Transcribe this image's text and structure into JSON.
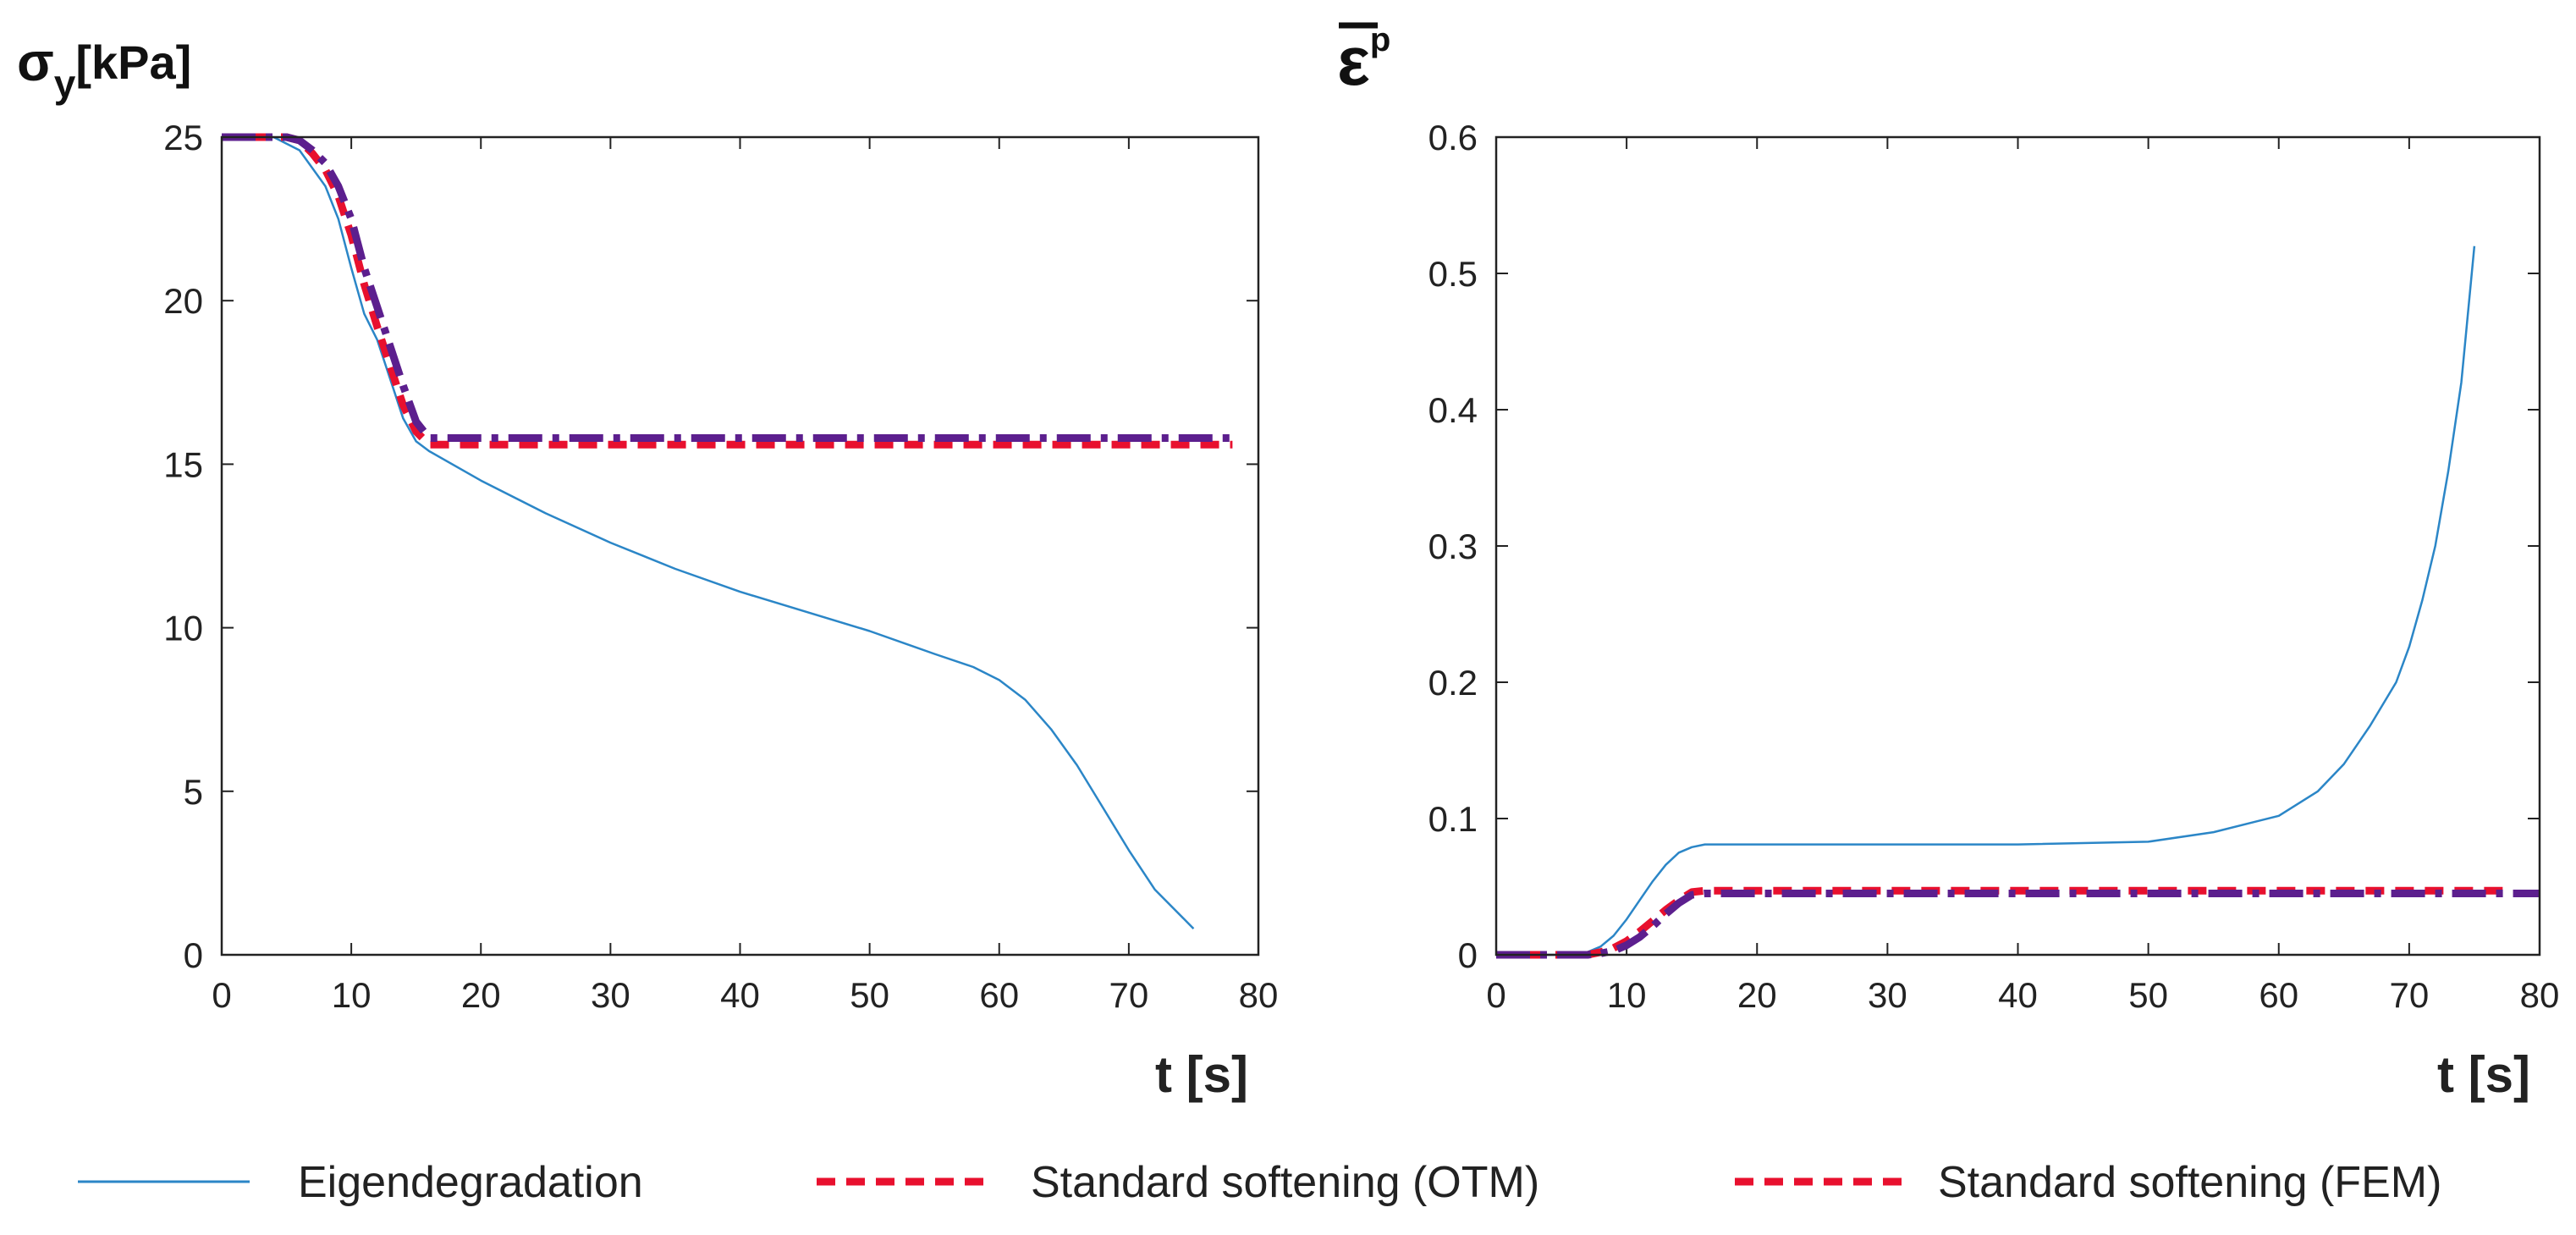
{
  "colors": {
    "eigen": "#2b86c7",
    "otm": "#e8102e",
    "fem": "#5c1f8e",
    "axis": "#222222"
  },
  "legend": {
    "items": [
      {
        "label": "Eigendegradation",
        "style": "solid",
        "color": "#2b86c7"
      },
      {
        "label": "Standard softening (OTM)",
        "style": "dashed",
        "color": "#e8102e"
      },
      {
        "label": "Standard softening (FEM)",
        "style": "dashed",
        "color": "#e8102e"
      }
    ]
  },
  "chart_data": [
    {
      "type": "line",
      "ylabel_main": "σ",
      "ylabel_sub": "y",
      "ylabel_unit": "[kPa]",
      "xlabel": "t [s]",
      "xlim": [
        0,
        80
      ],
      "ylim": [
        0,
        25
      ],
      "xticks": [
        "0",
        "10",
        "20",
        "30",
        "40",
        "50",
        "60",
        "70",
        "80"
      ],
      "yticks": [
        "0",
        "5",
        "10",
        "15",
        "20",
        "25"
      ],
      "series": [
        {
          "name": "Eigendegradation",
          "x": [
            0,
            4,
            6,
            8,
            9,
            10,
            11,
            12,
            13,
            14,
            15,
            16,
            20,
            25,
            30,
            35,
            40,
            45,
            50,
            55,
            58,
            60,
            62,
            64,
            66,
            68,
            70,
            72,
            74,
            75
          ],
          "y": [
            25,
            25,
            24.6,
            23.5,
            22.5,
            21,
            19.6,
            18.8,
            17.6,
            16.4,
            15.7,
            15.4,
            14.5,
            13.5,
            12.6,
            11.8,
            11.1,
            10.5,
            9.9,
            9.2,
            8.8,
            8.4,
            7.8,
            6.9,
            5.8,
            4.5,
            3.2,
            2.0,
            1.2,
            0.8
          ]
        },
        {
          "name": "Standard softening (OTM)",
          "x": [
            0,
            5,
            6,
            7,
            8,
            9,
            10,
            11,
            12,
            13,
            14,
            15,
            16,
            78
          ],
          "y": [
            25,
            25,
            24.9,
            24.5,
            24.0,
            23.2,
            22.0,
            20.5,
            19.2,
            18.0,
            16.8,
            16.0,
            15.6,
            15.6
          ]
        },
        {
          "name": "Standard softening (FEM)",
          "x": [
            0,
            5,
            6,
            7,
            8,
            9,
            10,
            11,
            12,
            13,
            14,
            15,
            16,
            78
          ],
          "y": [
            25,
            25,
            24.9,
            24.6,
            24.2,
            23.5,
            22.5,
            21.0,
            19.8,
            18.6,
            17.4,
            16.3,
            15.8,
            15.8
          ]
        }
      ]
    },
    {
      "type": "line",
      "ylabel_main": "ε",
      "ylabel_sup": "p",
      "xlabel": "t [s]",
      "xlim": [
        0,
        80
      ],
      "ylim": [
        0,
        0.6
      ],
      "xticks": [
        "0",
        "10",
        "20",
        "30",
        "40",
        "50",
        "60",
        "70",
        "80"
      ],
      "yticks": [
        "0",
        "0.1",
        "0.2",
        "0.3",
        "0.4",
        "0.5",
        "0.6"
      ],
      "series": [
        {
          "name": "Eigendegradation",
          "x": [
            0,
            6,
            7,
            8,
            9,
            10,
            11,
            12,
            13,
            14,
            15,
            16,
            20,
            30,
            40,
            50,
            55,
            60,
            63,
            65,
            67,
            69,
            70,
            71,
            72,
            73,
            74,
            75
          ],
          "y": [
            0,
            0,
            0.002,
            0.006,
            0.014,
            0.026,
            0.04,
            0.054,
            0.066,
            0.075,
            0.079,
            0.081,
            0.081,
            0.081,
            0.081,
            0.083,
            0.09,
            0.102,
            0.12,
            0.14,
            0.168,
            0.2,
            0.226,
            0.26,
            0.3,
            0.355,
            0.42,
            0.52
          ]
        },
        {
          "name": "Standard softening (OTM)",
          "x": [
            0,
            7,
            8,
            9,
            10,
            11,
            12,
            13,
            14,
            15,
            16,
            78
          ],
          "y": [
            0,
            0,
            0.002,
            0.005,
            0.01,
            0.017,
            0.025,
            0.033,
            0.04,
            0.046,
            0.047,
            0.047
          ]
        },
        {
          "name": "Standard softening (FEM)",
          "x": [
            0,
            7,
            8,
            9,
            10,
            11,
            12,
            13,
            14,
            15,
            16,
            80
          ],
          "y": [
            0,
            0,
            0.001,
            0.003,
            0.007,
            0.013,
            0.021,
            0.03,
            0.038,
            0.044,
            0.045,
            0.045
          ]
        }
      ]
    }
  ]
}
